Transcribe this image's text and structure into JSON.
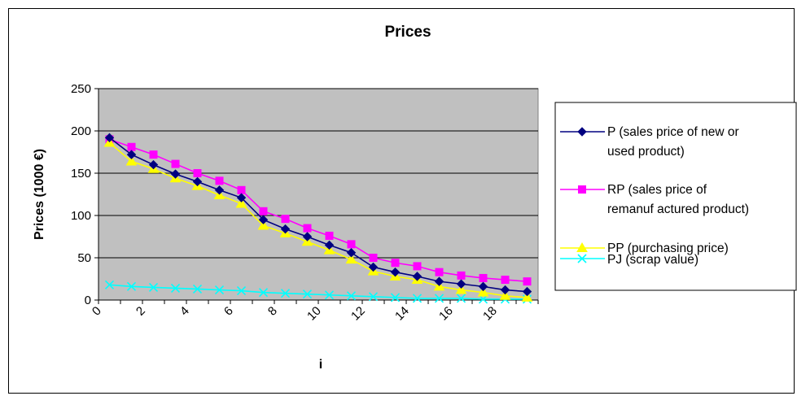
{
  "chart_data": {
    "type": "line",
    "title": "Prices",
    "xlabel": "i",
    "ylabel": "Prices (1000 €)",
    "ylim": [
      0,
      250
    ],
    "yticks": [
      0,
      50,
      100,
      150,
      200,
      250
    ],
    "xticks": [
      "0",
      "2",
      "4",
      "6",
      "8",
      "10",
      "12",
      "14",
      "16",
      "18"
    ],
    "grid": true,
    "plot_background": "#c0c0c0",
    "legend_position": "right",
    "x": [
      0,
      1,
      2,
      3,
      4,
      5,
      6,
      7,
      8,
      9,
      10,
      11,
      12,
      13,
      14,
      15,
      16,
      17,
      18,
      19
    ],
    "series": [
      {
        "name": "P (sales price of new  or used product)",
        "legend_lines": [
          "P (sales price of new  or",
          "used product)"
        ],
        "color": "#000080",
        "marker": "diamond",
        "values": [
          192,
          172,
          160,
          149,
          140,
          130,
          121,
          95,
          84,
          75,
          65,
          56,
          39,
          33,
          28,
          22,
          19,
          16,
          12,
          10
        ]
      },
      {
        "name": "RP (sales price of remanufactured product)",
        "legend_lines": [
          "RP (sales price of",
          "remanuf actured product)"
        ],
        "color": "#ff00ff",
        "marker": "square",
        "values": [
          190,
          181,
          172,
          161,
          150,
          141,
          130,
          105,
          96,
          85,
          76,
          66,
          50,
          44,
          40,
          33,
          29,
          26,
          24,
          22
        ]
      },
      {
        "name": "PP (purchasing price)",
        "legend_lines": [
          "PP (purchasing price)"
        ],
        "color": "#ffff00",
        "marker": "triangle",
        "values": [
          186,
          164,
          155,
          144,
          135,
          124,
          114,
          88,
          79,
          69,
          59,
          48,
          34,
          28,
          24,
          16,
          12,
          9,
          5,
          3
        ]
      },
      {
        "name": "PJ (scrap value)",
        "legend_lines": [
          "PJ (scrap value)"
        ],
        "color": "#00ffff",
        "marker": "x",
        "values": [
          18,
          16,
          15,
          14,
          13,
          12,
          11,
          9,
          8,
          7,
          6,
          5,
          4,
          3,
          2,
          2,
          2,
          1,
          1,
          1
        ]
      }
    ]
  }
}
